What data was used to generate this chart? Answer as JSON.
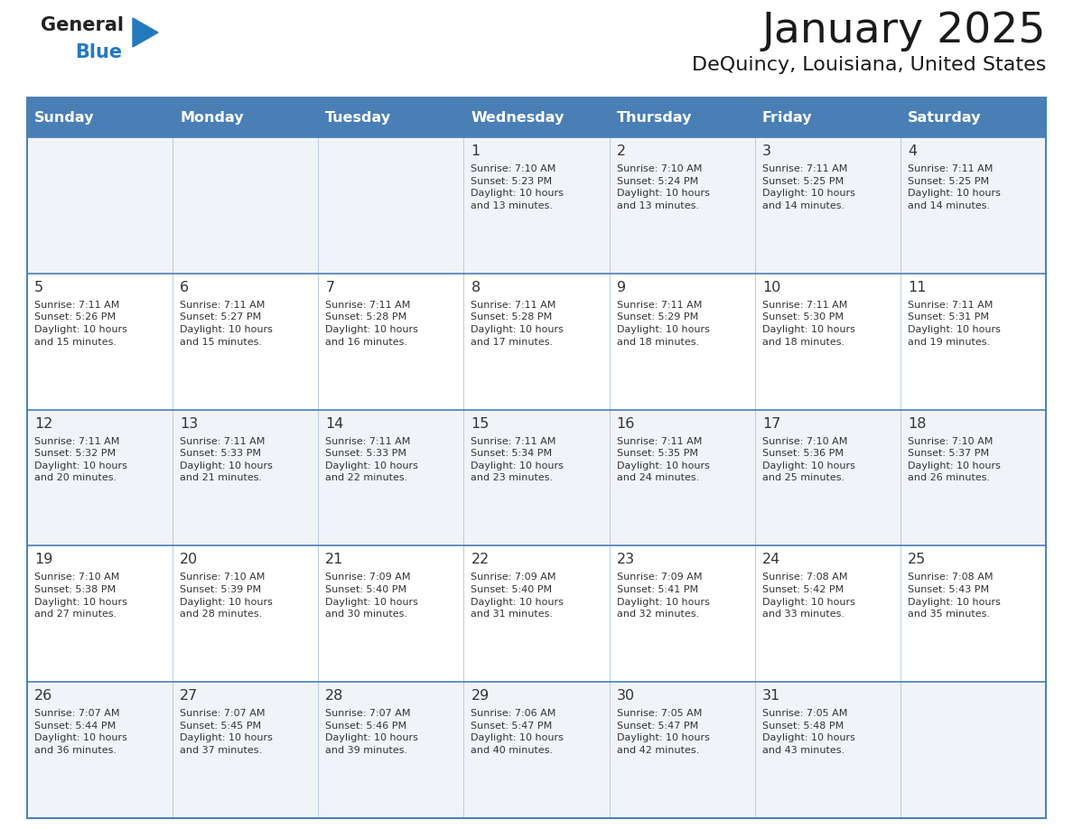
{
  "title": "January 2025",
  "subtitle": "DeQuincy, Louisiana, United States",
  "header_bg_color": "#4a7fb5",
  "header_text_color": "#ffffff",
  "row0_bg": "#f0f4f8",
  "row1_bg": "#ffffff",
  "border_color": "#4a7fb5",
  "divider_color": "#4a7fb5",
  "days_of_week": [
    "Sunday",
    "Monday",
    "Tuesday",
    "Wednesday",
    "Thursday",
    "Friday",
    "Saturday"
  ],
  "title_color": "#1a1a1a",
  "subtitle_color": "#1a1a1a",
  "cell_text_color": "#333333",
  "logo_general_color": "#222222",
  "logo_blue_color": "#2479be",
  "fig_width": 11.88,
  "fig_height": 9.18,
  "calendar_data": [
    [
      "",
      "",
      "",
      "1\nSunrise: 7:10 AM\nSunset: 5:23 PM\nDaylight: 10 hours\nand 13 minutes.",
      "2\nSunrise: 7:10 AM\nSunset: 5:24 PM\nDaylight: 10 hours\nand 13 minutes.",
      "3\nSunrise: 7:11 AM\nSunset: 5:25 PM\nDaylight: 10 hours\nand 14 minutes.",
      "4\nSunrise: 7:11 AM\nSunset: 5:25 PM\nDaylight: 10 hours\nand 14 minutes."
    ],
    [
      "5\nSunrise: 7:11 AM\nSunset: 5:26 PM\nDaylight: 10 hours\nand 15 minutes.",
      "6\nSunrise: 7:11 AM\nSunset: 5:27 PM\nDaylight: 10 hours\nand 15 minutes.",
      "7\nSunrise: 7:11 AM\nSunset: 5:28 PM\nDaylight: 10 hours\nand 16 minutes.",
      "8\nSunrise: 7:11 AM\nSunset: 5:28 PM\nDaylight: 10 hours\nand 17 minutes.",
      "9\nSunrise: 7:11 AM\nSunset: 5:29 PM\nDaylight: 10 hours\nand 18 minutes.",
      "10\nSunrise: 7:11 AM\nSunset: 5:30 PM\nDaylight: 10 hours\nand 18 minutes.",
      "11\nSunrise: 7:11 AM\nSunset: 5:31 PM\nDaylight: 10 hours\nand 19 minutes."
    ],
    [
      "12\nSunrise: 7:11 AM\nSunset: 5:32 PM\nDaylight: 10 hours\nand 20 minutes.",
      "13\nSunrise: 7:11 AM\nSunset: 5:33 PM\nDaylight: 10 hours\nand 21 minutes.",
      "14\nSunrise: 7:11 AM\nSunset: 5:33 PM\nDaylight: 10 hours\nand 22 minutes.",
      "15\nSunrise: 7:11 AM\nSunset: 5:34 PM\nDaylight: 10 hours\nand 23 minutes.",
      "16\nSunrise: 7:11 AM\nSunset: 5:35 PM\nDaylight: 10 hours\nand 24 minutes.",
      "17\nSunrise: 7:10 AM\nSunset: 5:36 PM\nDaylight: 10 hours\nand 25 minutes.",
      "18\nSunrise: 7:10 AM\nSunset: 5:37 PM\nDaylight: 10 hours\nand 26 minutes."
    ],
    [
      "19\nSunrise: 7:10 AM\nSunset: 5:38 PM\nDaylight: 10 hours\nand 27 minutes.",
      "20\nSunrise: 7:10 AM\nSunset: 5:39 PM\nDaylight: 10 hours\nand 28 minutes.",
      "21\nSunrise: 7:09 AM\nSunset: 5:40 PM\nDaylight: 10 hours\nand 30 minutes.",
      "22\nSunrise: 7:09 AM\nSunset: 5:40 PM\nDaylight: 10 hours\nand 31 minutes.",
      "23\nSunrise: 7:09 AM\nSunset: 5:41 PM\nDaylight: 10 hours\nand 32 minutes.",
      "24\nSunrise: 7:08 AM\nSunset: 5:42 PM\nDaylight: 10 hours\nand 33 minutes.",
      "25\nSunrise: 7:08 AM\nSunset: 5:43 PM\nDaylight: 10 hours\nand 35 minutes."
    ],
    [
      "26\nSunrise: 7:07 AM\nSunset: 5:44 PM\nDaylight: 10 hours\nand 36 minutes.",
      "27\nSunrise: 7:07 AM\nSunset: 5:45 PM\nDaylight: 10 hours\nand 37 minutes.",
      "28\nSunrise: 7:07 AM\nSunset: 5:46 PM\nDaylight: 10 hours\nand 39 minutes.",
      "29\nSunrise: 7:06 AM\nSunset: 5:47 PM\nDaylight: 10 hours\nand 40 minutes.",
      "30\nSunrise: 7:05 AM\nSunset: 5:47 PM\nDaylight: 10 hours\nand 42 minutes.",
      "31\nSunrise: 7:05 AM\nSunset: 5:48 PM\nDaylight: 10 hours\nand 43 minutes.",
      ""
    ]
  ]
}
